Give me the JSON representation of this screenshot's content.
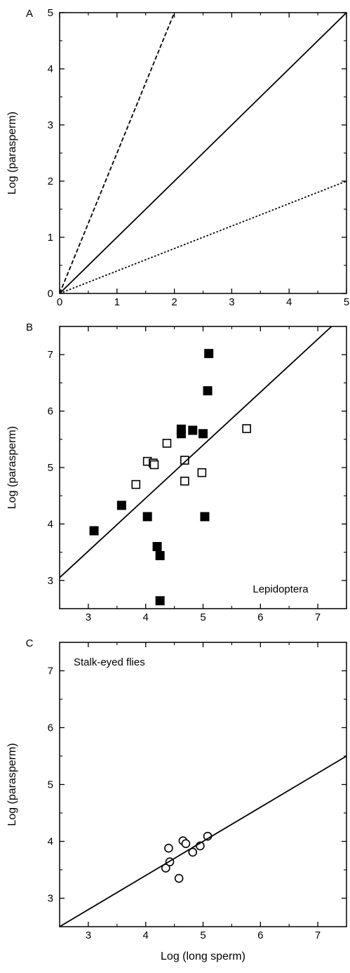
{
  "chart_data": [
    {
      "panel": "A",
      "type": "line",
      "title": "",
      "xlabel": "",
      "ylabel": "Log (parasperm)",
      "xlim": [
        0,
        5
      ],
      "ylim": [
        0,
        5
      ],
      "xticks": [
        0,
        1,
        2,
        3,
        4,
        5
      ],
      "yticks": [
        0,
        1,
        2,
        3,
        4,
        5
      ],
      "grid": false,
      "series": [
        {
          "style": "dashed",
          "x": [
            0,
            2
          ],
          "y": [
            0,
            5
          ]
        },
        {
          "style": "solid",
          "x": [
            0,
            5
          ],
          "y": [
            0,
            5
          ]
        },
        {
          "style": "dotted",
          "x": [
            0,
            5
          ],
          "y": [
            0,
            2
          ]
        }
      ]
    },
    {
      "panel": "B",
      "type": "scatter",
      "title": "",
      "xlabel": "",
      "ylabel": "Log (parasperm)",
      "annotation": "Lepidoptera",
      "xlim": [
        2.5,
        7.5
      ],
      "ylim": [
        2.5,
        7.5
      ],
      "xticks": [
        3,
        4,
        5,
        6,
        7
      ],
      "yticks": [
        3,
        4,
        5,
        6,
        7
      ],
      "grid": false,
      "series": [
        {
          "marker": "filled-square",
          "points": [
            [
              3.1,
              3.88
            ],
            [
              3.58,
              4.33
            ],
            [
              4.03,
              4.13
            ],
            [
              4.2,
              3.6
            ],
            [
              4.25,
              3.44
            ],
            [
              4.25,
              2.64
            ],
            [
              4.62,
              5.6
            ],
            [
              4.62,
              5.68
            ],
            [
              4.82,
              5.66
            ],
            [
              5.0,
              5.6
            ],
            [
              5.03,
              4.13
            ],
            [
              5.08,
              6.36
            ],
            [
              5.1,
              7.02
            ]
          ]
        },
        {
          "marker": "open-square",
          "points": [
            [
              3.83,
              4.7
            ],
            [
              4.03,
              5.11
            ],
            [
              4.13,
              5.08
            ],
            [
              4.15,
              5.05
            ],
            [
              4.37,
              5.43
            ],
            [
              4.68,
              5.13
            ],
            [
              4.68,
              4.76
            ],
            [
              4.98,
              4.91
            ],
            [
              5.76,
              5.69
            ]
          ]
        },
        {
          "marker": "line",
          "x": [
            2.5,
            7.24
          ],
          "y": [
            3.05,
            7.5
          ]
        }
      ]
    },
    {
      "panel": "C",
      "type": "scatter",
      "title": "",
      "xlabel": "Log (long sperm)",
      "ylabel": "Log (parasperm)",
      "annotation": "Stalk-eyed flies",
      "xlim": [
        2.5,
        7.5
      ],
      "ylim": [
        2.5,
        7.5
      ],
      "xticks": [
        3,
        4,
        5,
        6,
        7
      ],
      "yticks": [
        3,
        4,
        5,
        6,
        7
      ],
      "grid": false,
      "series": [
        {
          "marker": "open-circle",
          "points": [
            [
              4.35,
              3.53
            ],
            [
              4.4,
              3.88
            ],
            [
              4.42,
              3.64
            ],
            [
              4.58,
              3.35
            ],
            [
              4.65,
              4.01
            ],
            [
              4.7,
              3.96
            ],
            [
              4.82,
              3.81
            ],
            [
              4.95,
              3.92
            ],
            [
              5.08,
              4.09
            ]
          ]
        },
        {
          "marker": "line",
          "x": [
            2.5,
            7.5
          ],
          "y": [
            2.5,
            5.5
          ]
        }
      ]
    }
  ]
}
